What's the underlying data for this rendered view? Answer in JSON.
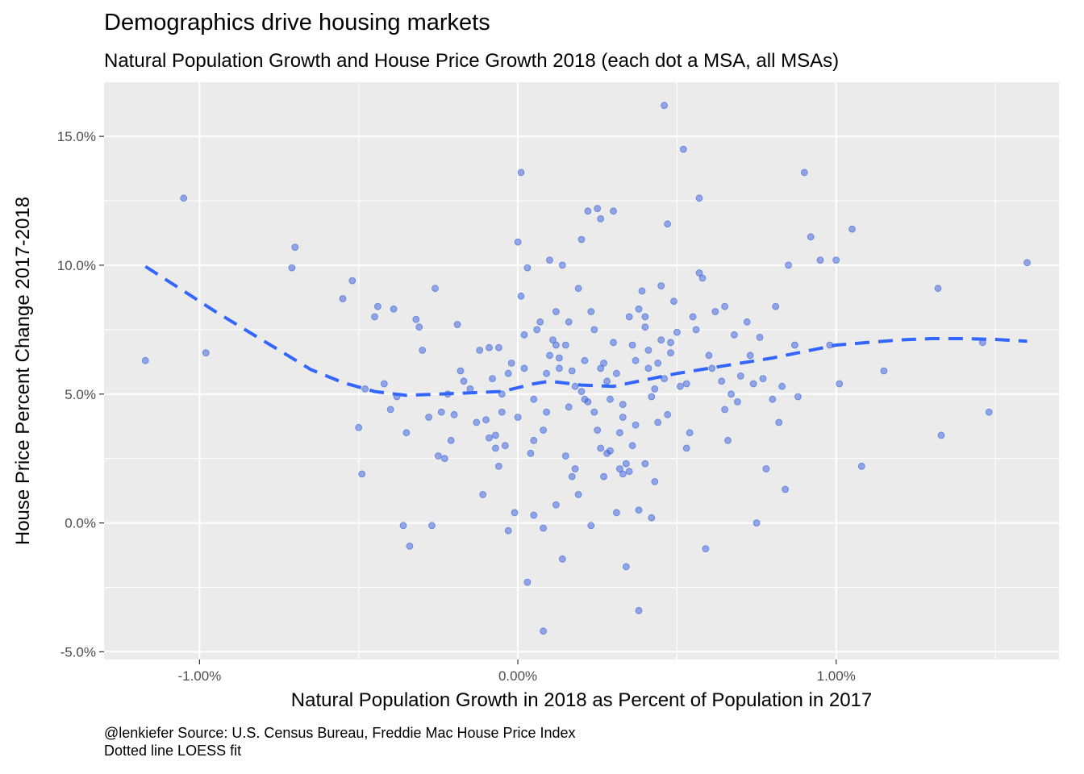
{
  "chart_data": {
    "type": "scatter",
    "title": "Demographics drive housing markets",
    "subtitle": "Natural Population Growth and House Price Growth 2018 (each dot a MSA, all MSAs)",
    "xlabel": "Natural Population Growth in 2018 as Percent of Population in 2017",
    "ylabel": "House Price Percent Change 2017-2018",
    "caption_lines": [
      "@lenkiefer Source: U.S. Census Bureau, Freddie Mac House Price Index",
      "Dotted line LOESS fit"
    ],
    "xlim": [
      -1.3,
      1.7
    ],
    "ylim": [
      -5.3,
      17.1
    ],
    "x_ticks": [
      -1.0,
      0.0,
      1.0
    ],
    "x_tick_labels": [
      "-1.00%",
      "0.00%",
      "1.00%"
    ],
    "y_ticks": [
      -5.0,
      0.0,
      5.0,
      10.0,
      15.0
    ],
    "y_tick_labels": [
      "-5.0%",
      "0.0%",
      "5.0%",
      "10.0%",
      "15.0%"
    ],
    "grid": true,
    "colors": {
      "panel": "#EBEBEB",
      "grid": "#FFFFFF",
      "point": "#4169E1",
      "point_stroke": "#2E55C9",
      "fit_line": "#3366FF",
      "text": "#000000",
      "tick_text": "#4D4D4D"
    },
    "point_opacity": 0.55,
    "fit_line_style": "dashed",
    "fit_line": {
      "x": [
        -1.17,
        -1.05,
        -0.95,
        -0.85,
        -0.75,
        -0.65,
        -0.55,
        -0.45,
        -0.35,
        -0.25,
        -0.15,
        -0.05,
        0.05,
        0.1,
        0.2,
        0.3,
        0.4,
        0.5,
        0.6,
        0.7,
        0.8,
        0.9,
        1.0,
        1.1,
        1.2,
        1.3,
        1.4,
        1.5,
        1.6
      ],
      "y": [
        9.95,
        9.0,
        8.2,
        7.45,
        6.7,
        5.95,
        5.45,
        5.1,
        4.95,
        5.0,
        5.05,
        5.1,
        5.4,
        5.5,
        5.35,
        5.3,
        5.55,
        5.8,
        6.0,
        6.2,
        6.4,
        6.65,
        6.9,
        7.0,
        7.1,
        7.15,
        7.15,
        7.12,
        7.05
      ]
    },
    "points": {
      "x": [
        -1.17,
        -1.05,
        -0.98,
        -0.71,
        -0.7,
        -0.55,
        -0.52,
        -0.5,
        -0.49,
        -0.48,
        -0.45,
        -0.44,
        -0.42,
        -0.4,
        -0.39,
        -0.38,
        -0.36,
        -0.35,
        -0.34,
        -0.32,
        -0.31,
        -0.3,
        -0.28,
        -0.27,
        -0.26,
        -0.25,
        -0.24,
        -0.23,
        -0.22,
        -0.21,
        -0.2,
        -0.19,
        -0.18,
        -0.17,
        -0.15,
        -0.13,
        -0.12,
        -0.11,
        -0.1,
        -0.09,
        -0.09,
        -0.08,
        -0.07,
        -0.07,
        -0.06,
        -0.05,
        -0.05,
        -0.04,
        -0.03,
        -0.02,
        -0.01,
        0.0,
        0.0,
        0.01,
        0.01,
        0.02,
        0.02,
        0.03,
        0.04,
        0.05,
        0.05,
        0.06,
        0.07,
        0.08,
        0.09,
        0.1,
        0.1,
        0.11,
        0.12,
        0.13,
        0.14,
        0.15,
        0.15,
        0.16,
        0.17,
        0.18,
        0.19,
        0.2,
        0.21,
        0.22,
        0.23,
        0.24,
        0.25,
        0.26,
        0.27,
        0.28,
        0.29,
        0.3,
        0.31,
        0.32,
        0.33,
        0.34,
        0.35,
        0.36,
        0.37,
        0.38,
        0.39,
        0.4,
        0.41,
        0.42,
        0.43,
        0.44,
        0.45,
        0.46,
        0.47,
        0.48,
        0.5,
        0.51,
        0.52,
        0.53,
        0.55,
        0.56,
        0.57,
        0.58,
        0.6,
        0.62,
        0.64,
        0.65,
        0.66,
        0.68,
        0.7,
        0.72,
        0.74,
        0.76,
        0.78,
        0.8,
        0.82,
        0.84,
        0.85,
        0.88,
        0.9,
        0.92,
        0.95,
        0.98,
        1.0,
        1.01,
        1.05,
        1.08,
        1.15,
        1.32,
        1.33,
        1.46,
        1.48,
        1.6,
        0.12,
        0.16,
        0.2,
        0.24,
        0.28,
        0.32,
        0.36,
        0.4,
        0.44,
        0.48,
        0.05,
        0.09,
        0.13,
        0.17,
        0.21,
        0.25,
        0.29,
        0.33,
        0.37,
        0.41,
        0.45,
        0.49,
        0.53,
        0.57,
        0.61,
        0.65,
        0.69,
        0.73,
        0.77,
        0.81,
        0.83,
        0.87,
        0.46,
        0.43,
        0.38,
        0.35,
        0.31,
        0.27,
        0.23,
        0.19,
        0.14,
        0.08,
        0.03,
        -0.03,
        -0.06,
        0.22,
        0.26,
        0.3,
        0.34,
        0.38,
        0.42,
        0.47,
        0.54,
        0.59,
        0.67,
        0.75,
        0.08,
        0.12,
        0.18,
        0.26,
        0.33,
        0.4
      ],
      "y": [
        6.3,
        12.6,
        6.6,
        9.9,
        10.7,
        8.7,
        9.4,
        3.7,
        1.9,
        5.2,
        8.0,
        8.4,
        5.4,
        4.4,
        8.3,
        4.9,
        -0.1,
        3.5,
        -0.9,
        7.9,
        7.6,
        6.7,
        4.1,
        -0.1,
        9.1,
        2.6,
        4.3,
        2.5,
        5.0,
        3.2,
        4.2,
        7.7,
        5.9,
        5.5,
        5.2,
        3.9,
        6.7,
        1.1,
        4.0,
        6.8,
        3.3,
        5.6,
        3.4,
        2.9,
        6.8,
        5.0,
        4.3,
        3.0,
        5.8,
        6.2,
        0.4,
        4.1,
        10.9,
        13.6,
        8.8,
        7.3,
        6.0,
        9.9,
        2.7,
        4.8,
        0.3,
        7.5,
        7.8,
        3.6,
        4.3,
        6.5,
        10.2,
        7.1,
        8.2,
        6.4,
        10.0,
        6.9,
        2.6,
        7.8,
        1.8,
        5.3,
        9.1,
        11.0,
        6.3,
        4.7,
        8.2,
        7.5,
        12.2,
        6.0,
        6.2,
        2.7,
        4.8,
        7.0,
        5.8,
        3.5,
        4.6,
        2.3,
        8.0,
        6.9,
        3.8,
        8.3,
        9.0,
        7.6,
        6.0,
        4.9,
        5.2,
        3.9,
        7.1,
        5.6,
        4.2,
        6.6,
        7.4,
        5.3,
        14.5,
        2.9,
        8.0,
        7.5,
        12.6,
        9.5,
        6.5,
        8.2,
        5.5,
        4.4,
        3.2,
        7.3,
        5.7,
        7.8,
        5.4,
        7.2,
        2.1,
        4.8,
        3.9,
        1.3,
        10.0,
        4.9,
        13.6,
        11.1,
        10.2,
        6.9,
        10.2,
        5.4,
        11.4,
        2.2,
        5.9,
        9.1,
        3.4,
        7.0,
        4.3,
        10.1,
        6.9,
        4.5,
        5.1,
        4.3,
        5.5,
        2.1,
        3.0,
        8.0,
        6.2,
        7.0,
        3.2,
        5.8,
        6.0,
        5.9,
        4.8,
        3.6,
        2.8,
        4.1,
        6.3,
        6.7,
        9.2,
        8.6,
        5.4,
        9.7,
        6.0,
        8.4,
        4.7,
        6.5,
        5.6,
        8.4,
        5.3,
        6.9,
        16.2,
        1.6,
        0.5,
        2.0,
        0.4,
        1.8,
        -0.1,
        1.1,
        -1.4,
        -0.2,
        -2.3,
        -0.3,
        2.2,
        12.1,
        11.8,
        12.1,
        -1.7,
        -3.4,
        0.2,
        11.6,
        3.5,
        -1.0,
        5.0,
        0.0,
        -4.2,
        0.7,
        2.1,
        2.9,
        1.9,
        2.3
      ]
    }
  }
}
